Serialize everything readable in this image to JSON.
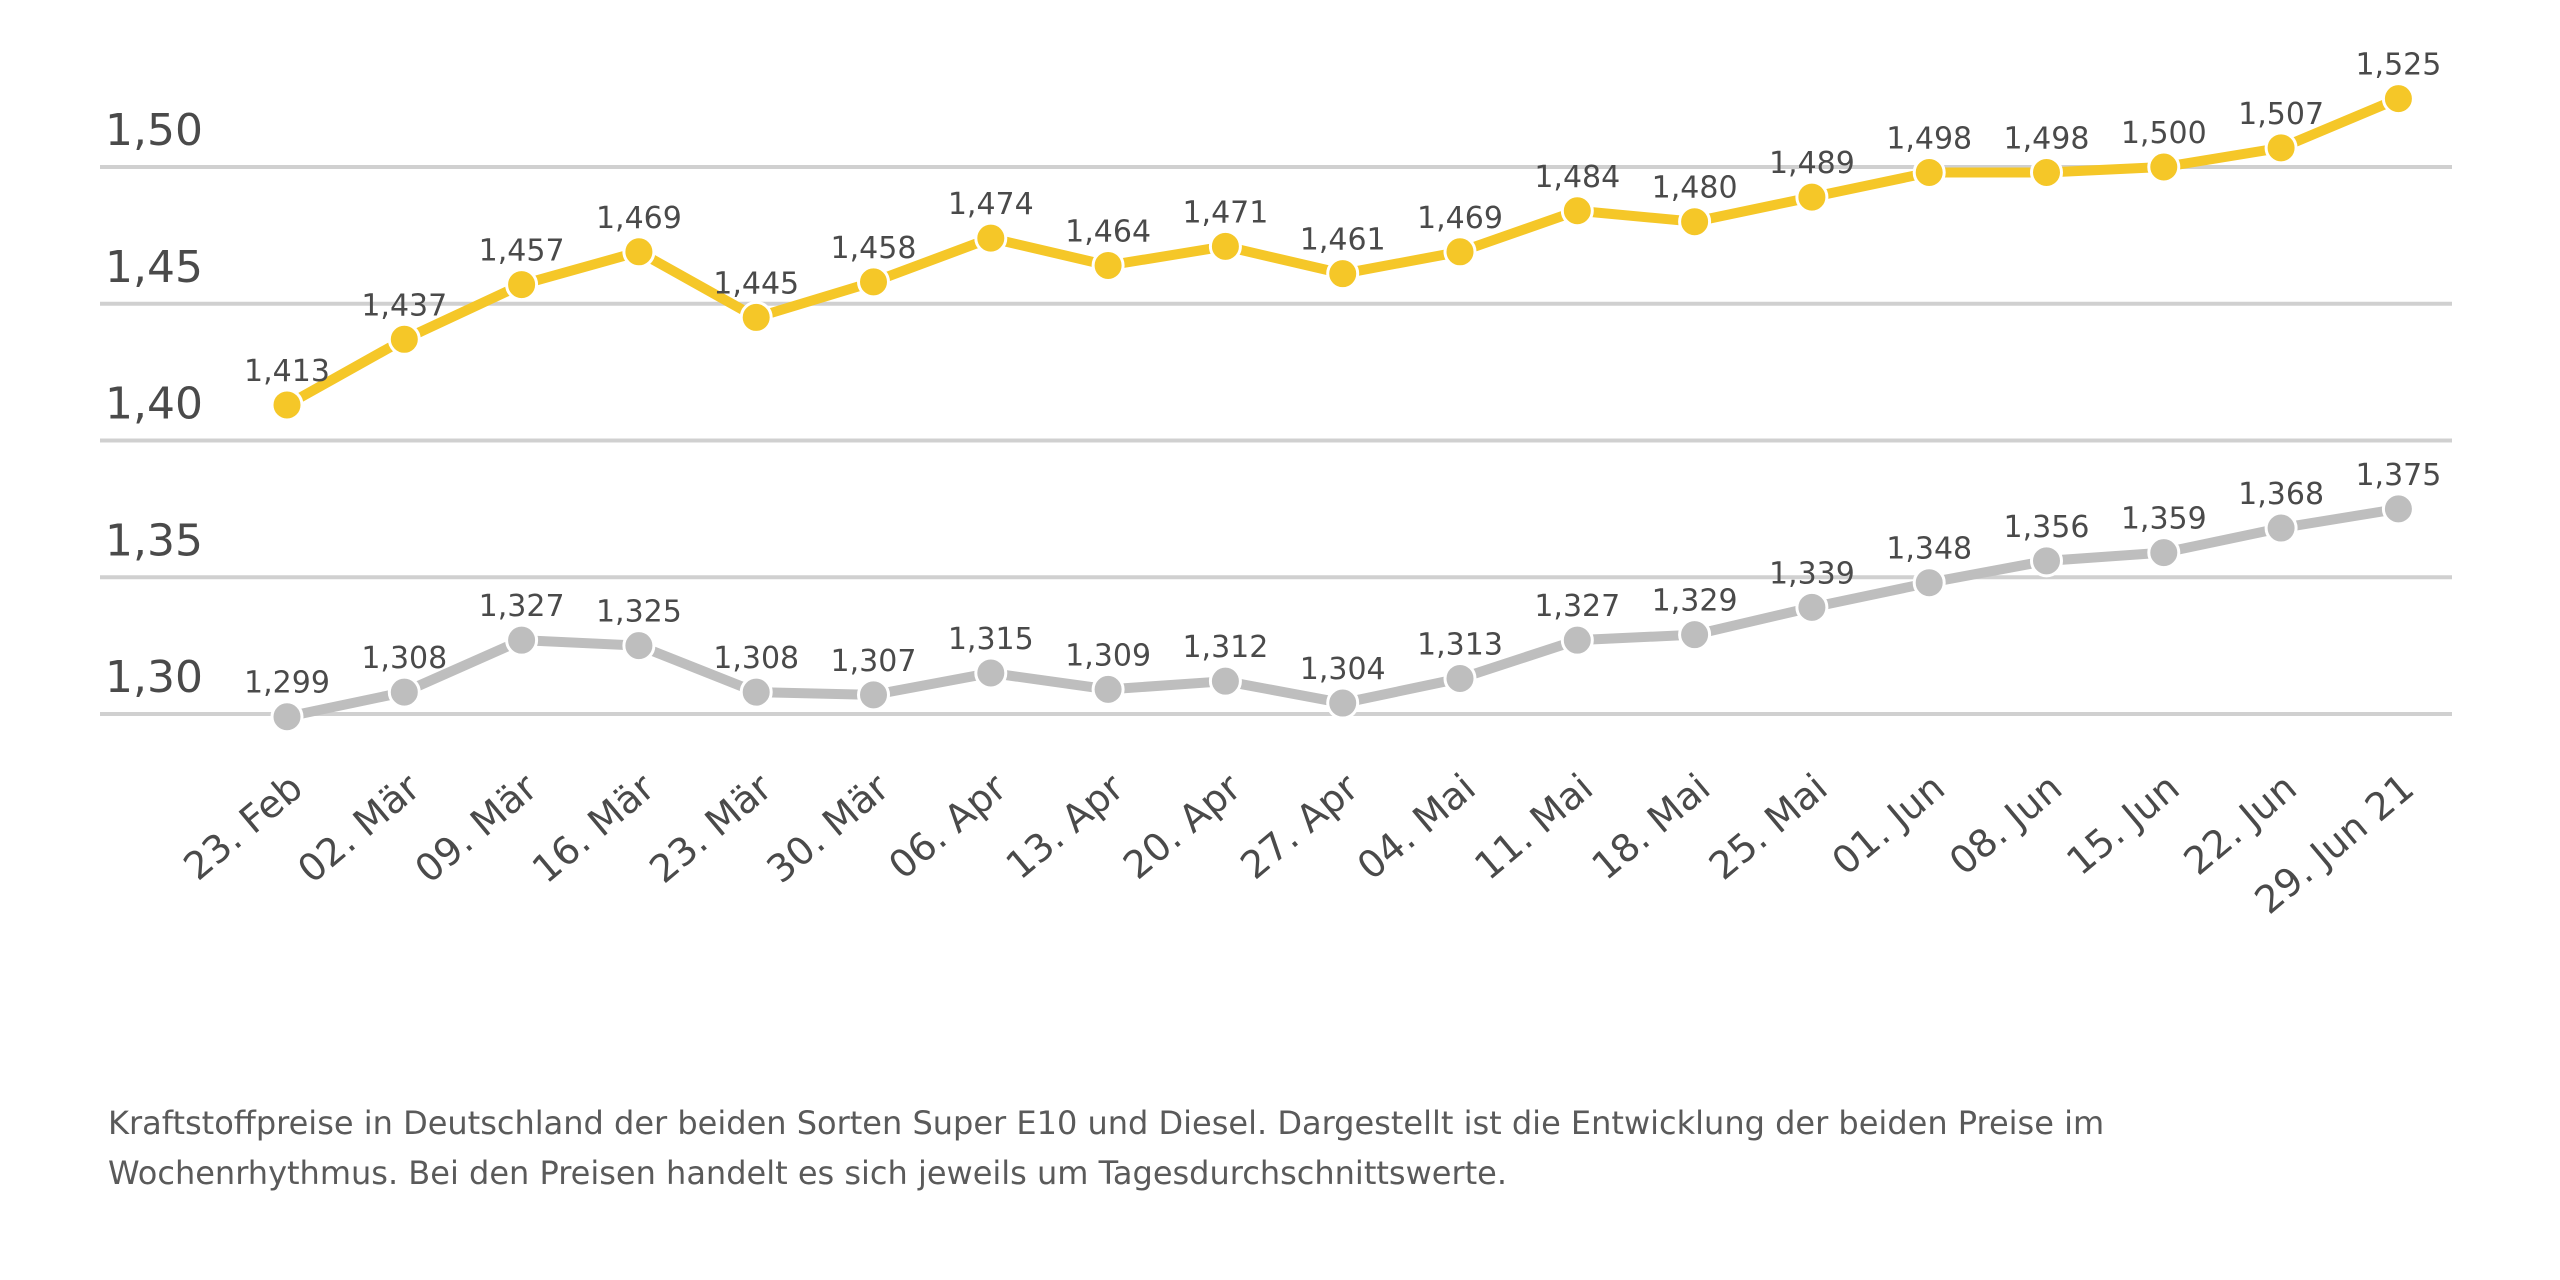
{
  "chart_data": {
    "type": "line",
    "title": "",
    "xlabel": "",
    "ylabel": "",
    "ylim": [
      1.3,
      1.5
    ],
    "yticks": [
      "1,30",
      "1,35",
      "1,40",
      "1,45",
      "1,50"
    ],
    "ytick_values": [
      1.3,
      1.35,
      1.4,
      1.45,
      1.5
    ],
    "grid": "horizontal",
    "legend": "none",
    "categories": [
      "23. Feb",
      "02. Mär",
      "09. Mär",
      "16. Mär",
      "23. Mär",
      "30. Mär",
      "06. Apr",
      "13. Apr",
      "20. Apr",
      "27. Apr",
      "04. Mai",
      "11. Mai",
      "18. Mai",
      "25. Mai",
      "01. Jun",
      "08. Jun",
      "15. Jun",
      "22. Jun",
      "29. Jun 21"
    ],
    "series": [
      {
        "color": "#f5c728",
        "values": [
          1.413,
          1.437,
          1.457,
          1.469,
          1.445,
          1.458,
          1.474,
          1.464,
          1.471,
          1.461,
          1.469,
          1.484,
          1.48,
          1.489,
          1.498,
          1.498,
          1.5,
          1.507,
          1.525
        ],
        "labels": [
          "1,413",
          "1,437",
          "1,457",
          "1,469",
          "1,445",
          "1,458",
          "1,474",
          "1,464",
          "1,471",
          "1,461",
          "1,469",
          "1,484",
          "1,480",
          "1,489",
          "1,498",
          "1,498",
          "1,500",
          "1,507",
          "1,525"
        ]
      },
      {
        "color": "#bebebe",
        "values": [
          1.299,
          1.308,
          1.327,
          1.325,
          1.308,
          1.307,
          1.315,
          1.309,
          1.312,
          1.304,
          1.313,
          1.327,
          1.329,
          1.339,
          1.348,
          1.356,
          1.359,
          1.368,
          1.375
        ],
        "labels": [
          "1,299",
          "1,308",
          "1,327",
          "1,325",
          "1,308",
          "1,307",
          "1,315",
          "1,309",
          "1,312",
          "1,304",
          "1,313",
          "1,327",
          "1,329",
          "1,339",
          "1,348",
          "1,356",
          "1,359",
          "1,368",
          "1,375"
        ]
      }
    ],
    "gridline_color": "#d0d0d0"
  },
  "caption": "Kraftstoffpreise in Deutschland der beiden Sorten Super E10 und Diesel. Dargestellt ist die Entwicklung der beiden Preise im Wochenrhythmus. Bei den Preisen handelt es sich jeweils um Tagesdurchschnittswerte."
}
